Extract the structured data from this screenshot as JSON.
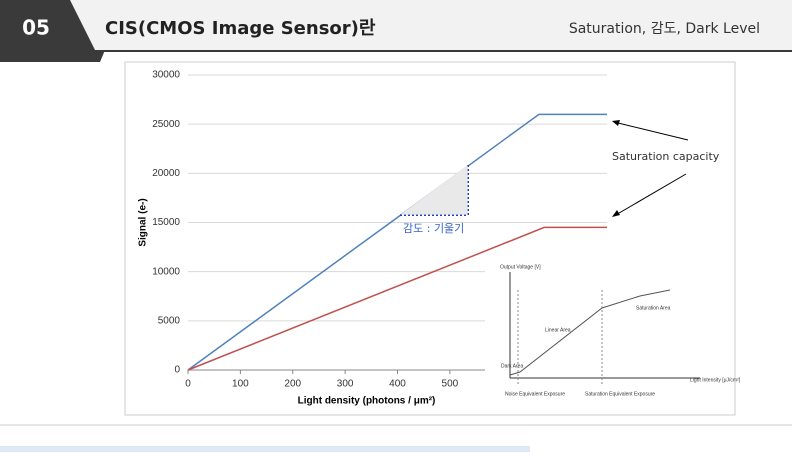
{
  "header": {
    "number": "05",
    "title": "CIS(CMOS Image Sensor)란",
    "subtitle": "Saturation, 감도, Dark Level"
  },
  "chart_data": {
    "type": "line",
    "y_label": "Signal (e-)",
    "x_label": "Light density (photons / μm²)",
    "annotations": [
      "Saturation capacity",
      "감도 : 기울기"
    ],
    "series": [
      {
        "color": "#4f81bd",
        "x": [
          0,
          670,
          800
        ],
        "values": [
          0,
          26000,
          26000
        ]
      },
      {
        "color": "#c0504d",
        "x": [
          0,
          680,
          800
        ],
        "values": [
          0,
          14500,
          14500
        ]
      }
    ],
    "xlim": [
      0,
      800
    ],
    "xticks": [
      0,
      100,
      200,
      300,
      400,
      500
    ],
    "ylim": [
      0,
      30000
    ],
    "yticks": [
      0,
      5000,
      10000,
      15000,
      20000,
      25000,
      30000
    ],
    "grid": true
  },
  "inset": {
    "y_label": "Output Voltage [V]",
    "x_label": "Light Intensity [μJ/cm²]",
    "dark_area": "Dark Area",
    "linear_area": "Linear Area",
    "saturation_area": "Saturation Area",
    "noise_exposure": "Noise Equivalent Exposure",
    "saturation_exposure": "Saturation Equivalent Exposure"
  }
}
